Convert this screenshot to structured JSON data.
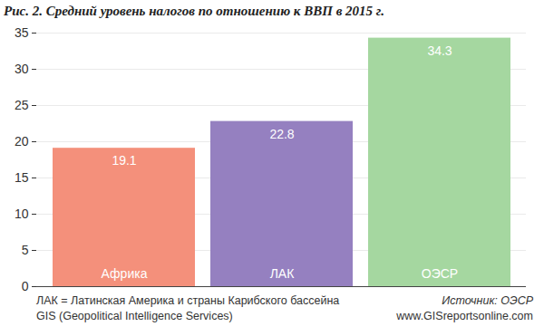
{
  "chart_data": {
    "type": "bar",
    "title": "Рис. 2. Средний уровень налогов по отношению к ВВП в 2015 г.",
    "categories": [
      "Африка",
      "ЛАК",
      "ОЭСР"
    ],
    "values": [
      19.1,
      22.8,
      34.3
    ],
    "colors": [
      "#f4907b",
      "#9580c0",
      "#a5d7a0"
    ],
    "ylim": [
      0,
      35
    ],
    "yticks": [
      0,
      5,
      10,
      15,
      20,
      25,
      30,
      35
    ],
    "grid": true,
    "data_labels": true,
    "footnote": "ЛАК = Латинская Америка и страны Карибского бассейна",
    "source": "Источник: ОЭСР",
    "credit": [
      "GIS (Geopolitical Intelligence Services)",
      "www.GISreportsonline.com"
    ]
  }
}
